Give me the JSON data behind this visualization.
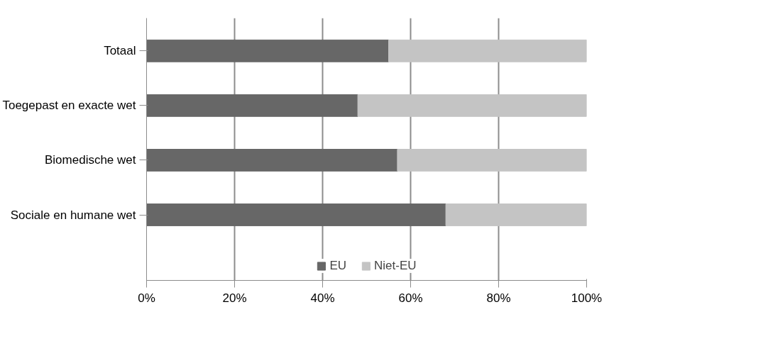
{
  "chart_data": {
    "type": "bar",
    "orientation": "horizontal",
    "stacked": true,
    "categories": [
      "Totaal",
      "Toegepast en exacte wet",
      "Biomedische wet",
      "Sociale en humane wet"
    ],
    "series": [
      {
        "name": "EU",
        "color": "#676767",
        "values": [
          55,
          48,
          57,
          68
        ]
      },
      {
        "name": "Niet-EU",
        "color": "#c4c4c4",
        "values": [
          45,
          52,
          43,
          32
        ]
      }
    ],
    "xlim": [
      0,
      100
    ],
    "xticks": [
      {
        "value": 0,
        "label": "0%"
      },
      {
        "value": 20,
        "label": "20%"
      },
      {
        "value": 40,
        "label": "40%"
      },
      {
        "value": 60,
        "label": "60%"
      },
      {
        "value": 80,
        "label": "80%"
      },
      {
        "value": 100,
        "label": "100%"
      }
    ],
    "grid": "x",
    "legend": "bottom"
  }
}
